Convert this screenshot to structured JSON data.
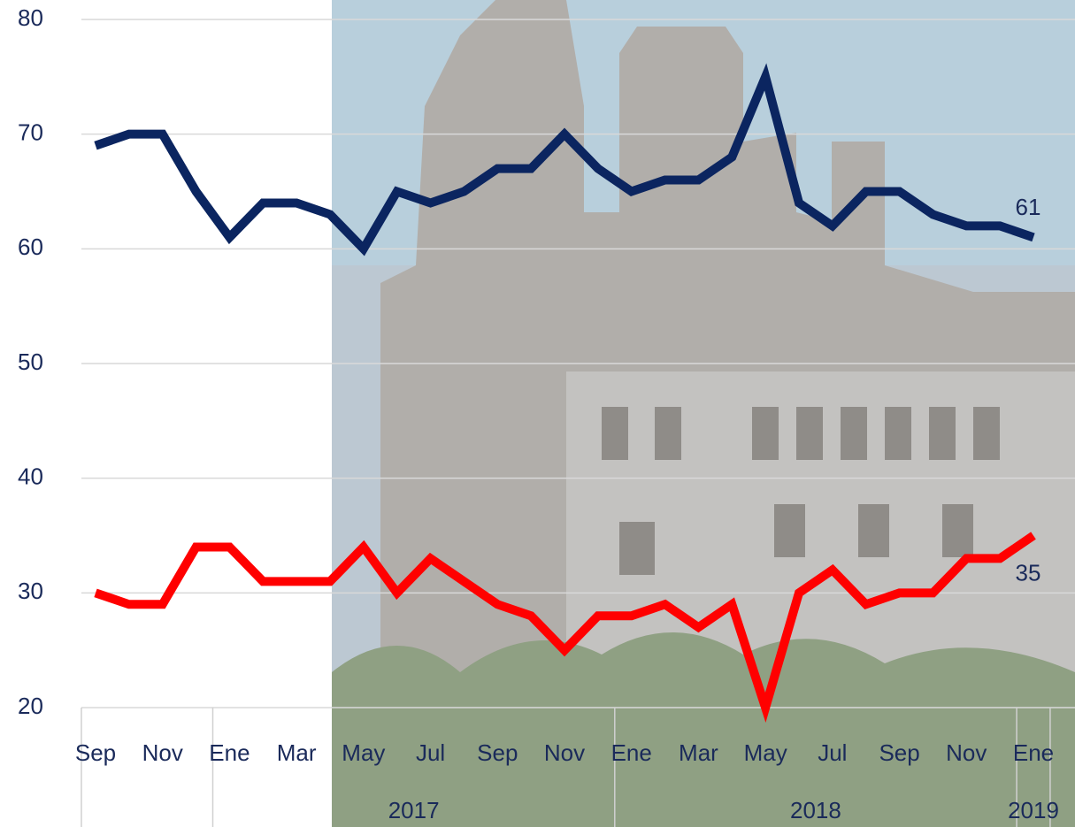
{
  "chart_data": {
    "type": "line",
    "categories": [
      "Sep",
      null,
      "Nov",
      null,
      "Ene",
      null,
      "Mar",
      null,
      "May",
      null,
      "Jul",
      null,
      "Sep",
      null,
      "Nov",
      null,
      "Ene",
      null,
      "Mar",
      null,
      "May",
      null,
      "Jul",
      null,
      "Sep",
      null,
      "Nov",
      null,
      "Ene"
    ],
    "years": [
      "2017",
      "2018",
      "2019"
    ],
    "series": [
      {
        "color": "#0b2560",
        "values": [
          69,
          70,
          70,
          65,
          61,
          64,
          64,
          63,
          60,
          65,
          64,
          65,
          67,
          67,
          70,
          67,
          65,
          66,
          66,
          68,
          75,
          64,
          62,
          65,
          65,
          63,
          62,
          62,
          61
        ]
      },
      {
        "color": "#ff0000",
        "values": [
          30,
          29,
          29,
          34,
          34,
          31,
          31,
          31,
          34,
          30,
          33,
          31,
          29,
          28,
          25,
          28,
          28,
          29,
          27,
          29,
          20,
          30,
          32,
          29,
          30,
          30,
          33,
          33,
          35
        ]
      }
    ],
    "ylim": [
      20,
      80
    ],
    "yticks": [
      20,
      30,
      40,
      50,
      60,
      70,
      80
    ],
    "grid": true
  }
}
